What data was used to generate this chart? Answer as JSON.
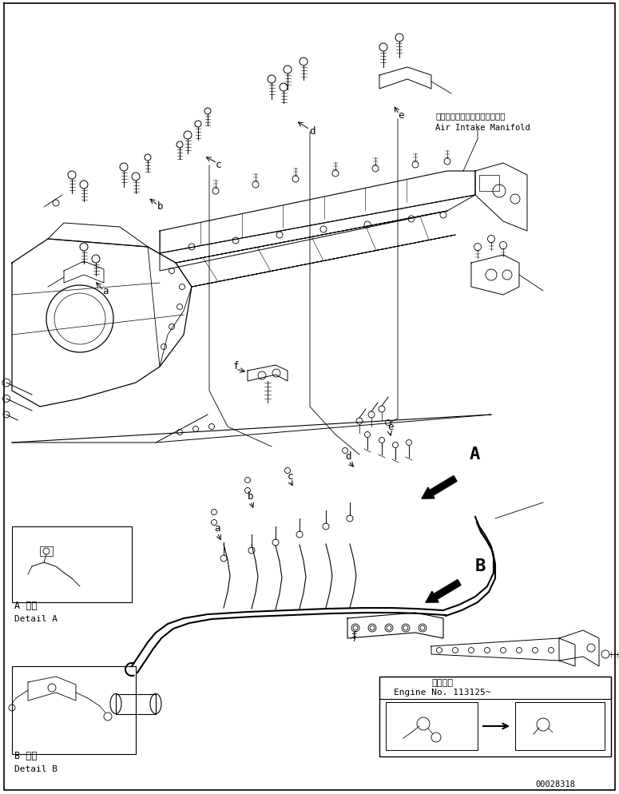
{
  "background_color": "#ffffff",
  "line_color": "#000000",
  "text_color": "#000000",
  "part_number": "00028318",
  "label_air_intake_jp": "エアーインテークマニホールド",
  "label_air_intake_en": "Air Intake Manifold",
  "label_detail_a_jp": "A 詳細",
  "label_detail_a_en": "Detail A",
  "label_detail_b_jp": "B 詳細",
  "label_detail_b_en": "Detail B",
  "label_engine_no_jp": "適用号機",
  "label_engine_no_en": "Engine No. 113125~",
  "label_A": "A",
  "label_B": "B",
  "font_mono": "monospace"
}
